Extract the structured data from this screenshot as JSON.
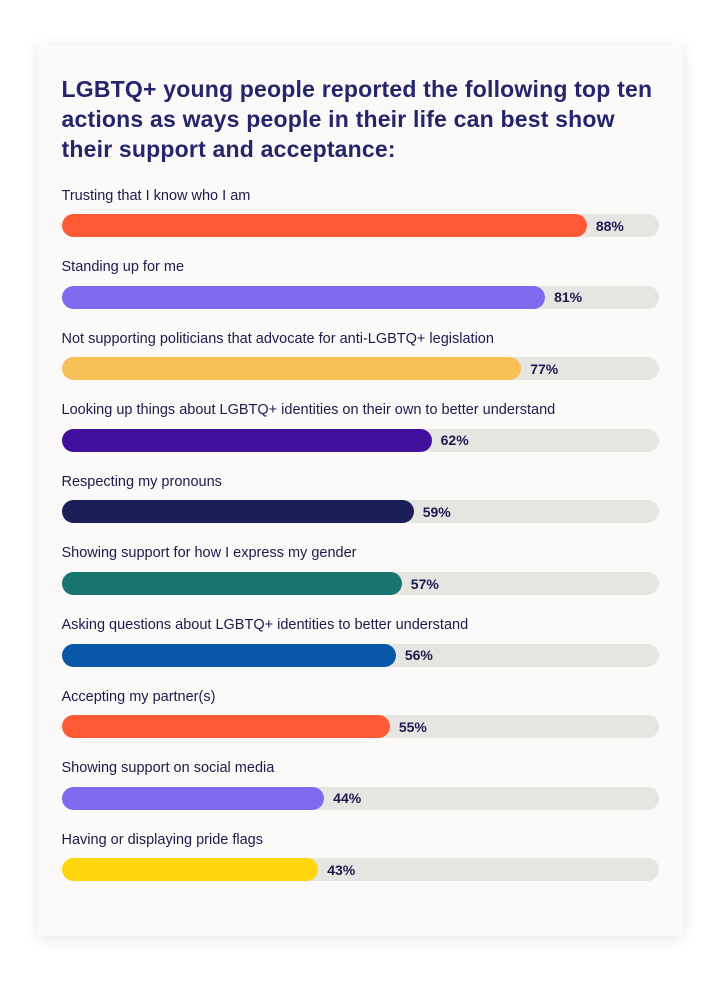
{
  "card": {
    "title": "LGBTQ+ young people reported the following top ten actions as ways people in their life can best show their support and acceptance:"
  },
  "chart_data": {
    "type": "bar",
    "orientation": "horizontal",
    "title": "LGBTQ+ young people reported the following top ten actions as ways people in their life can best show their support and acceptance:",
    "categories": [
      "Trusting that I know who I am",
      "Standing up for me",
      "Not supporting politicians that advocate for anti-LGBTQ+ legislation",
      "Looking up things about LGBTQ+ identities on their own to better understand",
      "Respecting my pronouns",
      "Showing support for how I express my gender",
      "Asking questions about LGBTQ+ identities to better understand",
      "Accepting my partner(s)",
      "Showing support on social media",
      "Having or displaying pride flags"
    ],
    "values": [
      88,
      81,
      77,
      62,
      59,
      57,
      56,
      55,
      44,
      43
    ],
    "value_labels": [
      "88%",
      "81%",
      "77%",
      "62%",
      "59%",
      "57%",
      "56%",
      "55%",
      "44%",
      "43%"
    ],
    "value_suffix": "%",
    "xlim": [
      0,
      100
    ],
    "grid": false,
    "legend": false,
    "bar_colors": [
      "#ff5a36",
      "#7d6aef",
      "#f8c158",
      "#41109e",
      "#1a2057",
      "#18756d",
      "#0857a8",
      "#ff5a36",
      "#7d6aef",
      "#ffd60e"
    ],
    "track_color": "#e6e5e2",
    "text_color": "#1c1b4d",
    "title_color": "#26246b"
  }
}
